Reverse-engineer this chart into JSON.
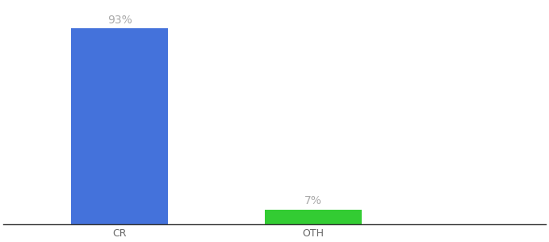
{
  "categories": [
    "CR",
    "OTH"
  ],
  "values": [
    93,
    7
  ],
  "bar_colors": [
    "#4472db",
    "#33cc33"
  ],
  "labels": [
    "93%",
    "7%"
  ],
  "background_color": "#ffffff",
  "bar_positions": [
    0,
    1
  ],
  "bar_width": 0.5,
  "xlim": [
    -0.6,
    2.2
  ],
  "ylim": [
    0,
    105
  ],
  "label_fontsize": 10,
  "tick_fontsize": 9,
  "label_color": "#aaaaaa",
  "tick_color": "#666666",
  "spine_color": "#333333"
}
